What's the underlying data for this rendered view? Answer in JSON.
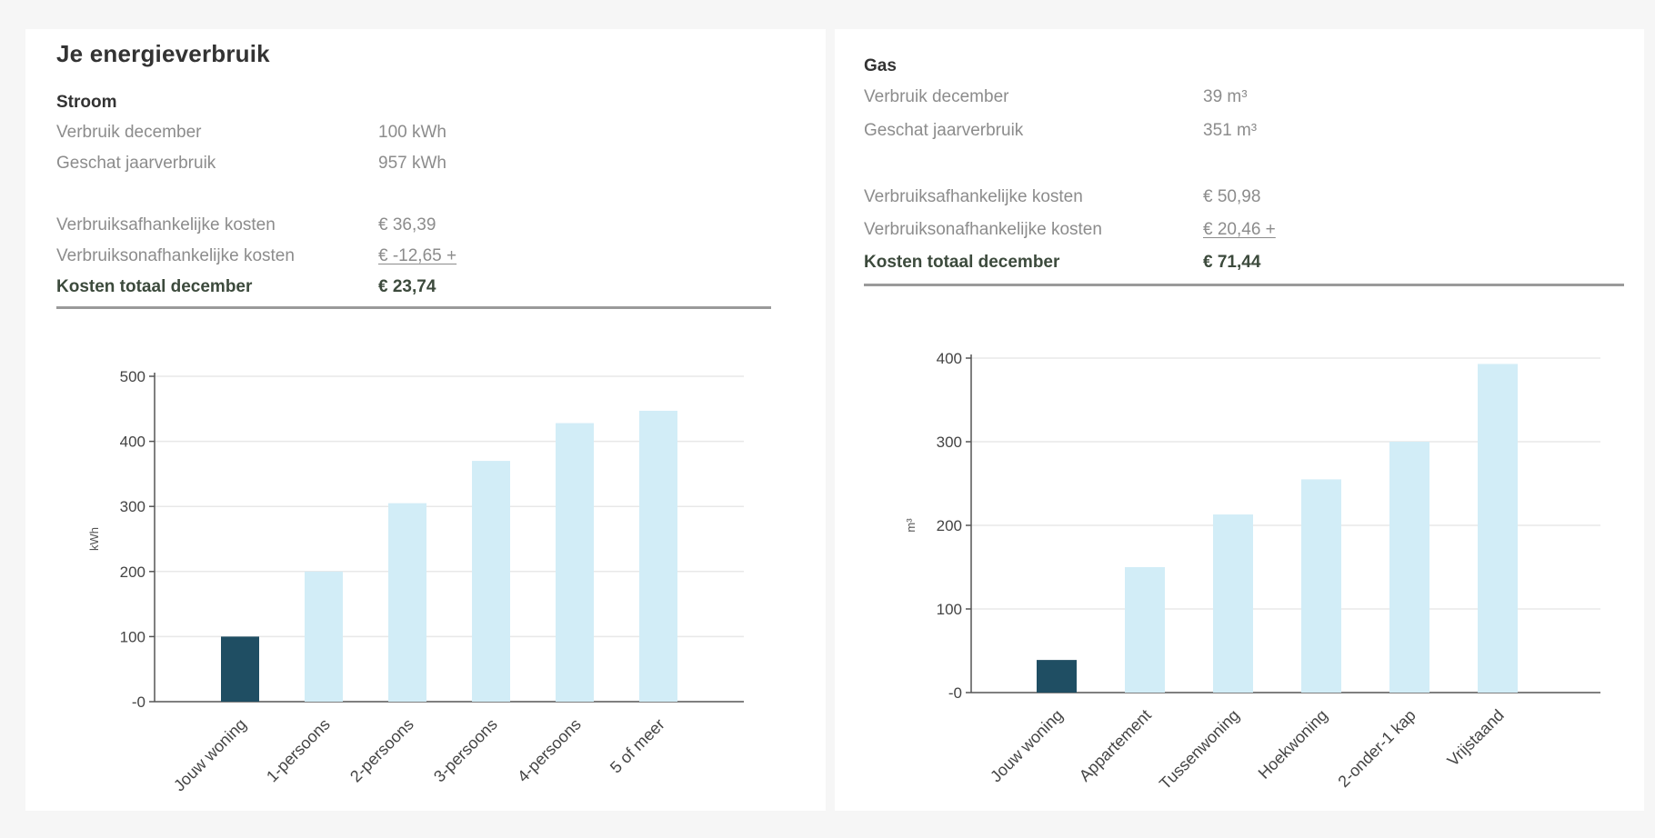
{
  "stroom": {
    "heading": "Je energieverbruik",
    "section_title": "Stroom",
    "rows": [
      {
        "label": "Verbruik december",
        "value": "100 kWh"
      },
      {
        "label": "Geschat jaarverbruik",
        "value": "957 kWh"
      },
      {
        "label": "Verbruiksafhankelijke kosten",
        "value": "€ 36,39"
      },
      {
        "label": "Verbruiksonafhankelijke kosten",
        "value": "€ -12,65 +"
      }
    ],
    "total": {
      "label": "Kosten totaal december",
      "value": "€ 23,74"
    }
  },
  "gas": {
    "section_title": "Gas",
    "rows": [
      {
        "label": "Verbruik december",
        "value": "39 m³"
      },
      {
        "label": "Geschat jaarverbruik",
        "value": "351 m³"
      },
      {
        "label": "Verbruiksafhankelijke kosten",
        "value": "€ 50,98"
      },
      {
        "label": "Verbruiksonafhankelijke kosten",
        "value": "€ 20,46 +"
      }
    ],
    "total": {
      "label": "Kosten totaal december",
      "value": "€ 71,44"
    }
  },
  "colors": {
    "highlight_bar": "#1f4e63",
    "comparison_bar": "#d2edf7",
    "gridline": "#e8e8e8",
    "axis": "#555555"
  },
  "chart_data": [
    {
      "type": "bar",
      "categories": [
        "Jouw woning",
        "1-persoons",
        "2-persoons",
        "3-persoons",
        "4-persoons",
        "5 of meer"
      ],
      "values": [
        100,
        200,
        305,
        370,
        428,
        447
      ],
      "highlight_index": 0,
      "ylabel": "kWh",
      "ylim": [
        0,
        500
      ],
      "yticks": [
        0,
        100,
        200,
        300,
        400,
        500
      ],
      "ytick_labels": [
        "-0",
        "100",
        "200",
        "300",
        "400",
        "500"
      ],
      "grid": true
    },
    {
      "type": "bar",
      "categories": [
        "Jouw woning",
        "Appartement",
        "Tussenwoning",
        "Hoekwoning",
        "2-onder-1 kap",
        "Vrijstaand"
      ],
      "values": [
        39,
        150,
        213,
        255,
        300,
        393
      ],
      "highlight_index": 0,
      "ylabel": "m³",
      "ylim": [
        0,
        400
      ],
      "yticks": [
        0,
        100,
        200,
        300,
        400
      ],
      "ytick_labels": [
        "-0",
        "100",
        "200",
        "300",
        "400"
      ],
      "grid": true
    }
  ]
}
